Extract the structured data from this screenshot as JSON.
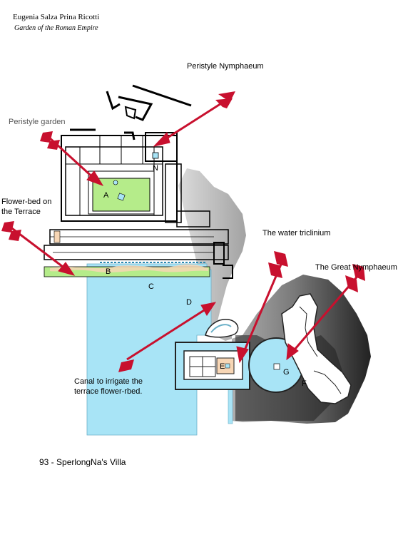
{
  "header": {
    "author": "Eugenia Salza Prina Ricotti",
    "subtitle": "Garden of the Roman Empire"
  },
  "labels": {
    "peristyle_nymphaeum": "Peristyle Nymphaeum",
    "peristyle_garden": "Peristyle garden",
    "flower_bed_line1": "Flower-bed on",
    "flower_bed_line2": "the Terrace",
    "water_triclinium": "The water triclinium",
    "great_nymphaeum": "The Great Nymphaeum",
    "canal_line1": "Canal to irrigate the",
    "canal_line2": "terrace flower-rbed."
  },
  "letters": {
    "a": "A",
    "b": "B",
    "c": "C",
    "d": "D",
    "e": "E",
    "f": "F",
    "g": "G",
    "n": "N"
  },
  "caption": "93 - SperlongNa's Villa",
  "colors": {
    "arrow": "#c8102e",
    "water": "#a8e4f6",
    "garden": "#b5ec8a",
    "rock_dark": "#2a2a2a",
    "rock_light": "#d8d8d8",
    "flower_bed": "#f7d6b5",
    "walls": "#000000"
  }
}
